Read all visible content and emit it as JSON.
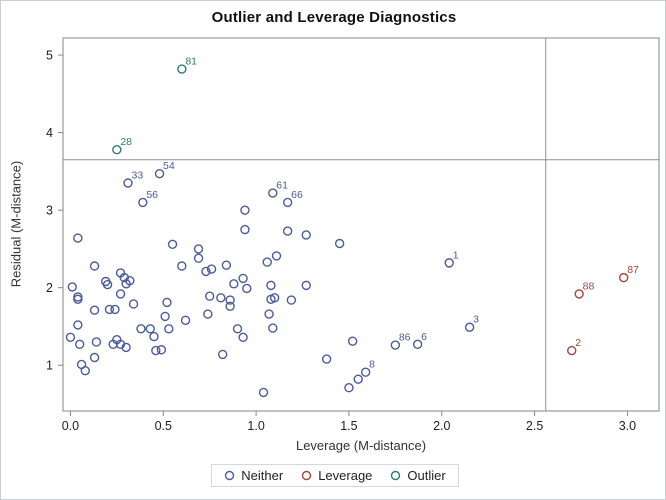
{
  "chart_data": {
    "type": "scatter",
    "title": "Outlier and Leverage Diagnostics",
    "xlabel": "Leverage (M-distance)",
    "ylabel": "Residual (M-distance)",
    "xlim": [
      -0.04,
      3.17
    ],
    "ylim": [
      0.41,
      5.22
    ],
    "xticks": [
      "0.0",
      "0.5",
      "1.0",
      "1.5",
      "2.0",
      "2.5",
      "3.0"
    ],
    "yticks": [
      "1",
      "2",
      "3",
      "4",
      "5"
    ],
    "grid": false,
    "legend_position": "bottom-center",
    "reference_lines": {
      "vertical_x": 2.56,
      "horizontal_y": 3.65,
      "color": "#8f8f8f"
    },
    "colors": {
      "neither": "#4a5b9b",
      "leverage": "#a5453a",
      "outlier": "#2e7b6f",
      "frame": "#868686",
      "tick_text": "#1f1f1f"
    },
    "series": [
      {
        "name": "Neither",
        "color": "#4a5b9b",
        "points": [
          [
            0.31,
            3.35,
            "33"
          ],
          [
            0.48,
            3.47,
            "54"
          ],
          [
            0.39,
            3.1,
            "56"
          ],
          [
            1.09,
            3.22,
            "61"
          ],
          [
            1.17,
            3.1,
            "66"
          ],
          [
            2.04,
            2.32,
            "1"
          ],
          [
            2.15,
            1.49,
            "3"
          ],
          [
            1.75,
            1.26,
            "86"
          ],
          [
            1.87,
            1.27,
            "6"
          ],
          [
            1.59,
            0.91,
            "8"
          ],
          [
            0.04,
            2.64
          ],
          [
            0.55,
            2.56
          ],
          [
            0.69,
            2.5
          ],
          [
            0.69,
            2.38
          ],
          [
            0.6,
            2.28
          ],
          [
            0.13,
            2.28
          ],
          [
            0.73,
            2.21
          ],
          [
            0.76,
            2.24
          ],
          [
            0.19,
            2.08
          ],
          [
            0.2,
            2.04
          ],
          [
            0.27,
            2.19
          ],
          [
            0.29,
            2.13
          ],
          [
            0.3,
            2.05
          ],
          [
            0.32,
            2.09
          ],
          [
            0.27,
            1.92
          ],
          [
            0.01,
            2.01
          ],
          [
            0.04,
            1.88
          ],
          [
            0.04,
            1.85
          ],
          [
            0.13,
            1.71
          ],
          [
            0.21,
            1.72
          ],
          [
            0.24,
            1.72
          ],
          [
            0.34,
            1.79
          ],
          [
            0.52,
            1.81
          ],
          [
            0.51,
            1.63
          ],
          [
            0.62,
            1.58
          ],
          [
            0.74,
            1.66
          ],
          [
            0.04,
            1.52
          ],
          [
            0.0,
            1.36
          ],
          [
            0.05,
            1.27
          ],
          [
            0.14,
            1.3
          ],
          [
            0.23,
            1.27
          ],
          [
            0.25,
            1.33
          ],
          [
            0.27,
            1.27
          ],
          [
            0.3,
            1.23
          ],
          [
            0.38,
            1.47
          ],
          [
            0.43,
            1.47
          ],
          [
            0.45,
            1.37
          ],
          [
            0.53,
            1.47
          ],
          [
            0.46,
            1.19
          ],
          [
            0.49,
            1.2
          ],
          [
            0.13,
            1.1
          ],
          [
            0.06,
            1.01
          ],
          [
            0.08,
            0.93
          ],
          [
            0.75,
            1.89
          ],
          [
            0.81,
            1.87
          ],
          [
            0.86,
            1.84
          ],
          [
            0.86,
            1.76
          ],
          [
            0.88,
            2.05
          ],
          [
            0.93,
            2.12
          ],
          [
            0.95,
            1.99
          ],
          [
            0.94,
            3.0
          ],
          [
            0.94,
            2.75
          ],
          [
            1.17,
            2.73
          ],
          [
            1.27,
            2.68
          ],
          [
            1.45,
            2.57
          ],
          [
            1.11,
            2.41
          ],
          [
            1.06,
            2.33
          ],
          [
            0.84,
            2.29
          ],
          [
            1.08,
            2.03
          ],
          [
            1.27,
            2.03
          ],
          [
            1.08,
            1.85
          ],
          [
            1.1,
            1.87
          ],
          [
            1.19,
            1.84
          ],
          [
            1.07,
            1.66
          ],
          [
            1.09,
            1.48
          ],
          [
            0.9,
            1.47
          ],
          [
            0.93,
            1.36
          ],
          [
            0.82,
            1.14
          ],
          [
            1.38,
            1.08
          ],
          [
            1.04,
            0.65
          ],
          [
            1.52,
            1.31
          ],
          [
            1.55,
            0.82
          ],
          [
            1.5,
            0.71
          ]
        ]
      },
      {
        "name": "Leverage",
        "color": "#a5453a",
        "points": [
          [
            2.7,
            1.19,
            "2"
          ],
          [
            2.74,
            1.92,
            "88"
          ],
          [
            2.98,
            2.13,
            "87"
          ]
        ]
      },
      {
        "name": "Outlier",
        "color": "#2e7b6f",
        "points": [
          [
            0.6,
            4.82,
            "81"
          ],
          [
            0.25,
            3.78,
            "28"
          ]
        ]
      }
    ]
  },
  "legend": {
    "items": [
      {
        "label": "Neither",
        "color": "#4a5b9b"
      },
      {
        "label": "Leverage",
        "color": "#a5453a"
      },
      {
        "label": "Outlier",
        "color": "#2e7b6f"
      }
    ]
  }
}
